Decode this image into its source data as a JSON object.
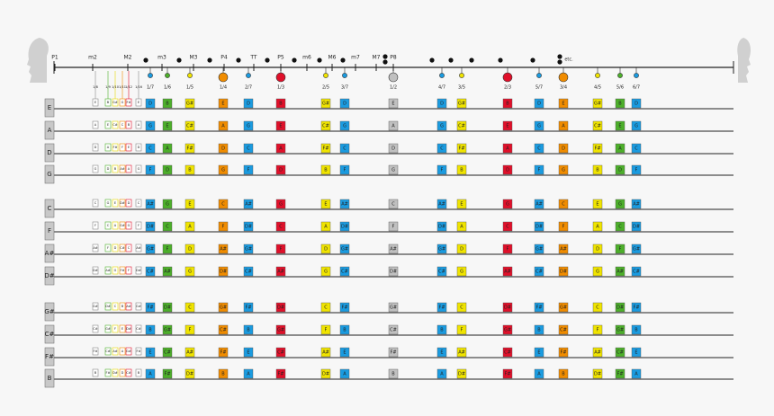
{
  "intervals": [
    "P1",
    "m2",
    "M2",
    "m3",
    "M3",
    "P4",
    "TT",
    "P5",
    "m6",
    "M6",
    "m7",
    "M7",
    "P8"
  ],
  "etc": "etc.",
  "harmonic_labels": [
    "1/8",
    "1/9",
    "1/10",
    "1/11",
    "1/12",
    "1/16"
  ],
  "ratios": [
    "1/7",
    "1/6",
    "1/5",
    "1/4",
    "2/7",
    "1/3",
    "2/5",
    "3/7",
    "1/2",
    "4/7",
    "3/5",
    "2/3",
    "5/7",
    "3/4",
    "4/5",
    "5/6",
    "6/7"
  ],
  "strings": [
    {
      "name": "E",
      "small": [
        "E",
        "B",
        "G#",
        "G",
        "F#",
        "E"
      ],
      "notes": [
        "D",
        "B",
        "G#",
        "E",
        "D",
        "B",
        "G#",
        "D",
        "E",
        "D",
        "G#",
        "B",
        "D",
        "E",
        "G#",
        "B",
        "D"
      ]
    },
    {
      "name": "A",
      "small": [
        "A",
        "E",
        "C#",
        "C",
        "B",
        "A"
      ],
      "notes": [
        "G",
        "E",
        "C#",
        "A",
        "G",
        "E",
        "C#",
        "G",
        "A",
        "G",
        "C#",
        "E",
        "G",
        "A",
        "C#",
        "E",
        "G"
      ]
    },
    {
      "name": "D",
      "small": [
        "D",
        "A",
        "F#",
        "F",
        "E",
        "D"
      ],
      "notes": [
        "C",
        "A",
        "F#",
        "D",
        "C",
        "A",
        "F#",
        "C",
        "D",
        "C",
        "F#",
        "A",
        "C",
        "D",
        "F#",
        "A",
        "C"
      ]
    },
    {
      "name": "G",
      "small": [
        "G",
        "D",
        "B",
        "A#",
        "A",
        "G"
      ],
      "notes": [
        "F",
        "D",
        "B",
        "G",
        "F",
        "D",
        "B",
        "F",
        "G",
        "F",
        "B",
        "D",
        "F",
        "G",
        "B",
        "D",
        "F"
      ]
    },
    {
      "name": "C",
      "small": [
        "C",
        "G",
        "E",
        "D#",
        "D",
        "C"
      ],
      "notes": [
        "A#",
        "G",
        "E",
        "C",
        "A#",
        "G",
        "E",
        "A#",
        "C",
        "A#",
        "E",
        "G",
        "A#",
        "C",
        "E",
        "G",
        "A#"
      ]
    },
    {
      "name": "F",
      "small": [
        "F",
        "C",
        "A",
        "G#",
        "G",
        "F"
      ],
      "notes": [
        "D#",
        "C",
        "A",
        "F",
        "D#",
        "C",
        "A",
        "D#",
        "F",
        "D#",
        "A",
        "C",
        "D#",
        "F",
        "A",
        "C",
        "D#"
      ]
    },
    {
      "name": "A#",
      "small": [
        "A#",
        "F",
        "D",
        "C#",
        "C",
        "A#"
      ],
      "notes": [
        "G#",
        "F",
        "D",
        "A#",
        "G#",
        "F",
        "D",
        "G#",
        "A#",
        "G#",
        "D",
        "F",
        "G#",
        "A#",
        "D",
        "F",
        "G#"
      ]
    },
    {
      "name": "D#",
      "small": [
        "D#",
        "A#",
        "G",
        "F#",
        "F",
        "D#"
      ],
      "notes": [
        "C#",
        "A#",
        "G",
        "D#",
        "C#",
        "A#",
        "G",
        "C#",
        "D#",
        "C#",
        "G",
        "A#",
        "C#",
        "D#",
        "G",
        "A#",
        "C#"
      ]
    },
    {
      "name": "G#",
      "small": [
        "G#",
        "D#",
        "C",
        "B",
        "A#",
        "G#"
      ],
      "notes": [
        "F#",
        "D#",
        "C",
        "G#",
        "F#",
        "D#",
        "C",
        "F#",
        "G#",
        "F#",
        "C",
        "D#",
        "F#",
        "G#",
        "C",
        "D#",
        "F#"
      ]
    },
    {
      "name": "C#",
      "small": [
        "C#",
        "G#",
        "F",
        "E",
        "D#",
        "C#"
      ],
      "notes": [
        "B",
        "G#",
        "F",
        "C#",
        "B",
        "G#",
        "F",
        "B",
        "C#",
        "B",
        "F",
        "G#",
        "B",
        "C#",
        "F",
        "G#",
        "B"
      ]
    },
    {
      "name": "F#",
      "small": [
        "F#",
        "C#",
        "A#",
        "A",
        "G#",
        "F#"
      ],
      "notes": [
        "E",
        "C#",
        "A#",
        "F#",
        "E",
        "C#",
        "A#",
        "E",
        "F#",
        "E",
        "A#",
        "C#",
        "E",
        "F#",
        "A#",
        "C#",
        "E"
      ]
    },
    {
      "name": "B",
      "small": [
        "B",
        "F#",
        "D#",
        "D",
        "C#",
        "B"
      ],
      "notes": [
        "A",
        "F#",
        "D#",
        "B",
        "A",
        "F#",
        "D#",
        "A",
        "B",
        "A",
        "D#",
        "F#",
        "A",
        "B",
        "D#",
        "F#",
        "A"
      ]
    }
  ]
}
